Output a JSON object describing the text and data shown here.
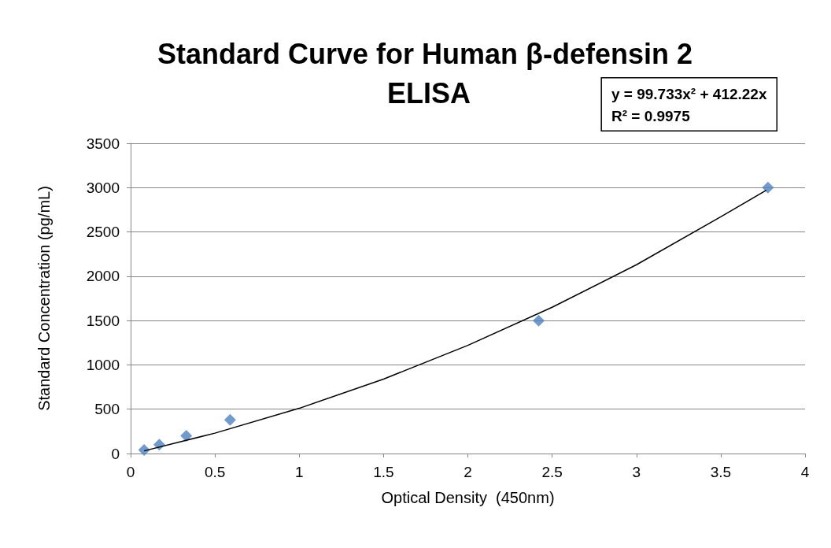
{
  "chart_data": {
    "type": "scatter",
    "title": "Standard Curve for Human β-defensin 2 ELISA",
    "xlabel": "Optical Density  (450nm)",
    "ylabel": "Standard Concentration (pg/mL)",
    "annotations": [
      "y = 99.733x² + 412.22x\nR² = 0.9975"
    ],
    "series": [
      {
        "type": "scatter",
        "color": "#4f81bd",
        "marker": "diamond",
        "x": [
          0.08,
          0.17,
          0.33,
          0.59,
          2.42,
          3.78
        ],
        "values": [
          40,
          100,
          200,
          380,
          1500,
          3000
        ]
      },
      {
        "type": "line",
        "color": "#000000",
        "marker": "none",
        "line_style": "solid",
        "x": [
          0.08,
          0.5,
          1,
          1.5,
          2,
          2.5,
          3,
          3.5,
          3.77
        ],
        "values": [
          30,
          230,
          510,
          840,
          1220,
          1650,
          2130,
          2670,
          2970
        ]
      }
    ],
    "xlim": [
      0,
      4
    ],
    "xticks": [
      0,
      0.5,
      1,
      1.5,
      2,
      2.5,
      3,
      3.5,
      4
    ],
    "ylim": [
      0,
      3500
    ],
    "yticks": [
      0,
      500,
      1000,
      1500,
      2000,
      2500,
      3000,
      3500
    ],
    "grid": "y"
  }
}
